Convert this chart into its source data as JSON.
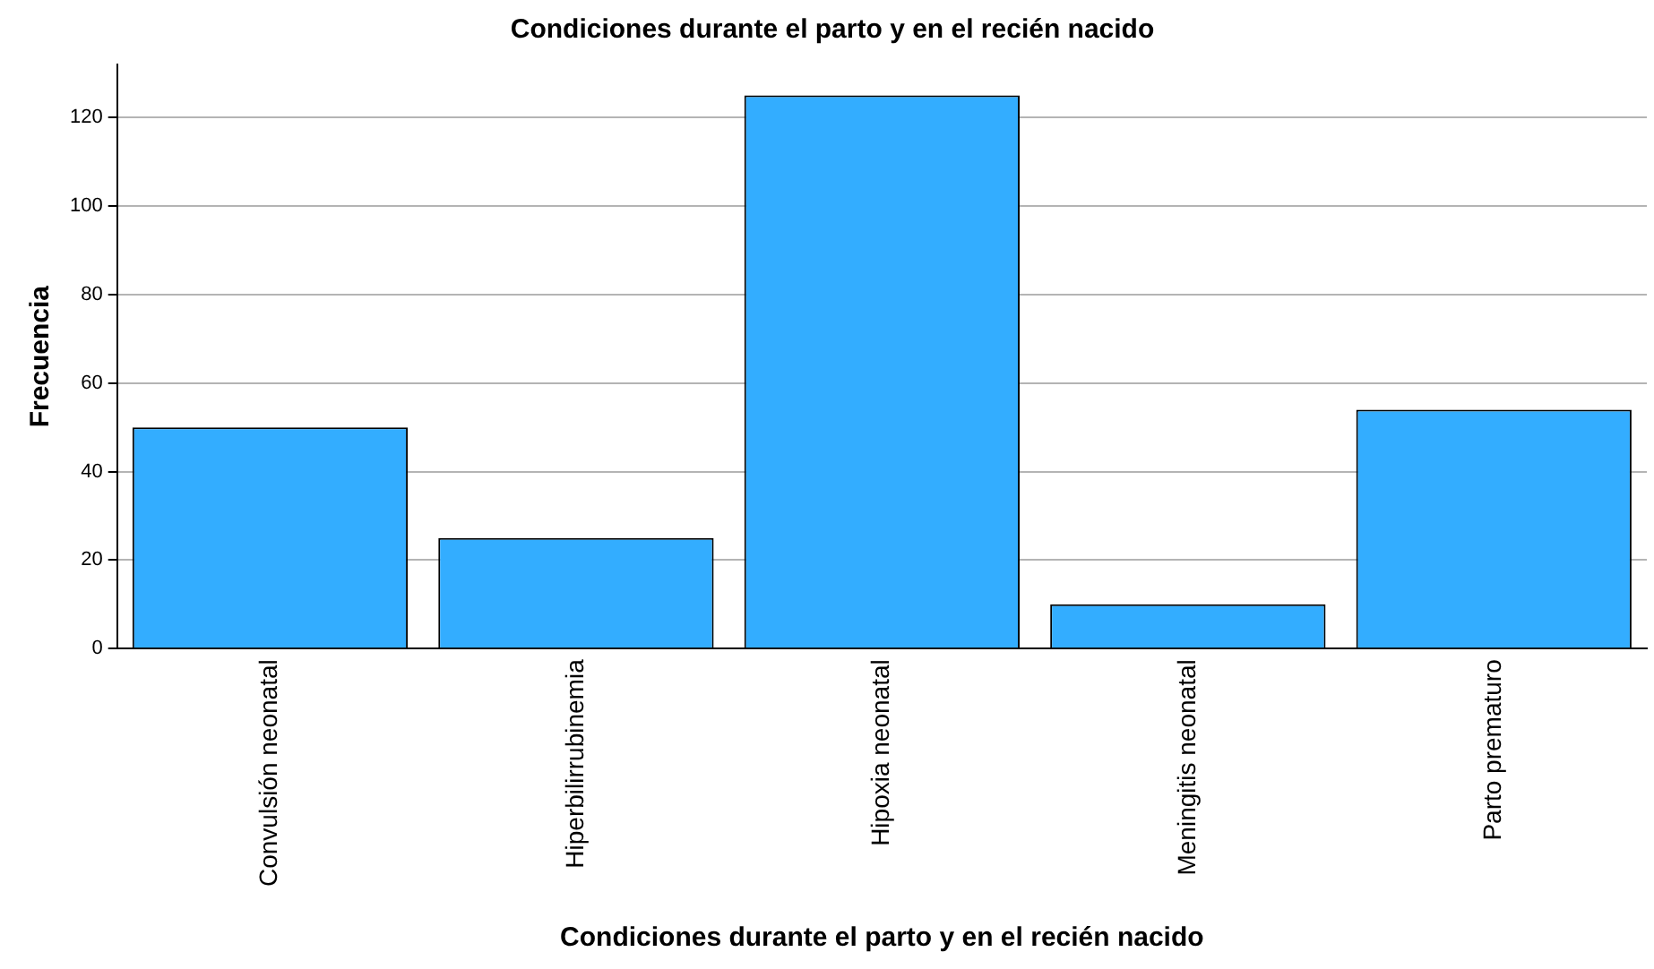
{
  "chart_data": {
    "type": "bar",
    "title": "Condiciones durante el parto y en el recién nacido",
    "xlabel": "Condiciones durante el parto y en el recién nacido",
    "ylabel": "Frecuencia",
    "categories": [
      "Convulsión neonatal",
      "Hiperbilirrubinemia",
      "Hipoxia neonatal",
      "Meningitis neonatal",
      "Parto prematuro"
    ],
    "values": [
      50,
      25,
      125,
      10,
      54
    ],
    "color": "#33adff",
    "ylim": [
      0,
      132
    ],
    "yticks": [
      0,
      20,
      40,
      60,
      80,
      100,
      120
    ],
    "grid": "y",
    "legend": false
  }
}
